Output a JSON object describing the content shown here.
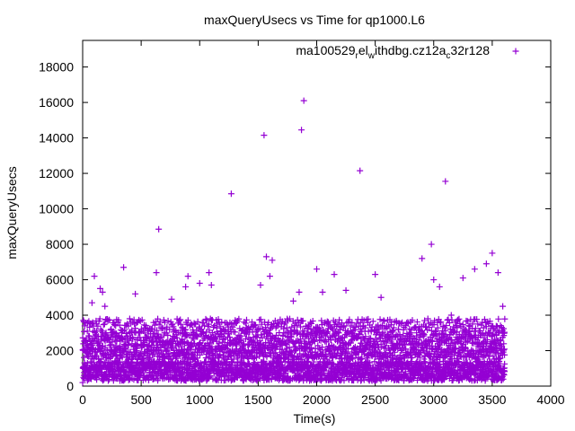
{
  "chart_data": {
    "type": "scatter",
    "title": "maxQueryUsecs vs Time for qp1000.L6",
    "xlabel": "Time(s)",
    "ylabel": "maxQueryUsecs",
    "xlim": [
      0,
      4000
    ],
    "ylim": [
      0,
      19500
    ],
    "x_ticks": [
      0,
      500,
      1000,
      1500,
      2000,
      2500,
      3000,
      3500,
      4000
    ],
    "y_ticks": [
      0,
      2000,
      4000,
      6000,
      8000,
      10000,
      12000,
      14000,
      16000,
      18000
    ],
    "grid": false,
    "legend_position": "top-right",
    "marker": "plus",
    "series": [
      {
        "name": "ma100529_rel_withdbg.cz12a_c32r128",
        "name_parts": [
          "ma100529",
          "r",
          "el",
          "w",
          "ithdbg.cz12a",
          "c",
          "32r128"
        ],
        "color": "#9400d3",
        "points": [
          [
            0,
            200
          ],
          [
            20,
            600
          ],
          [
            40,
            2300
          ],
          [
            60,
            900
          ],
          [
            80,
            4700
          ],
          [
            100,
            6200
          ],
          [
            120,
            3100
          ],
          [
            150,
            5500
          ],
          [
            170,
            5300
          ],
          [
            190,
            4500
          ],
          [
            230,
            2300
          ],
          [
            260,
            2800
          ],
          [
            320,
            1900
          ],
          [
            350,
            6700
          ],
          [
            380,
            2600
          ],
          [
            420,
            3000
          ],
          [
            450,
            5200
          ],
          [
            500,
            3100
          ],
          [
            550,
            2700
          ],
          [
            600,
            2500
          ],
          [
            630,
            6400
          ],
          [
            650,
            8850
          ],
          [
            700,
            3000
          ],
          [
            760,
            4900
          ],
          [
            800,
            2900
          ],
          [
            850,
            3300
          ],
          [
            880,
            5600
          ],
          [
            900,
            6200
          ],
          [
            950,
            3000
          ],
          [
            1000,
            5800
          ],
          [
            1050,
            2800
          ],
          [
            1080,
            6400
          ],
          [
            1100,
            5700
          ],
          [
            1150,
            3500
          ],
          [
            1200,
            2200
          ],
          [
            1270,
            10850
          ],
          [
            1300,
            2600
          ],
          [
            1400,
            3300
          ],
          [
            1480,
            2300
          ],
          [
            1520,
            5700
          ],
          [
            1550,
            14150
          ],
          [
            1570,
            7300
          ],
          [
            1600,
            6200
          ],
          [
            1620,
            7100
          ],
          [
            1650,
            2700
          ],
          [
            1700,
            3500
          ],
          [
            1750,
            2800
          ],
          [
            1800,
            4800
          ],
          [
            1850,
            5300
          ],
          [
            1870,
            14450
          ],
          [
            1890,
            16100
          ],
          [
            1950,
            3200
          ],
          [
            2000,
            6600
          ],
          [
            2050,
            5300
          ],
          [
            2100,
            3600
          ],
          [
            2150,
            6300
          ],
          [
            2200,
            3200
          ],
          [
            2250,
            5400
          ],
          [
            2300,
            2600
          ],
          [
            2370,
            12150
          ],
          [
            2400,
            3400
          ],
          [
            2450,
            2700
          ],
          [
            2500,
            6300
          ],
          [
            2550,
            5000
          ],
          [
            2600,
            3300
          ],
          [
            2650,
            2300
          ],
          [
            2700,
            3200
          ],
          [
            2750,
            2500
          ],
          [
            2800,
            3000
          ],
          [
            2900,
            7200
          ],
          [
            2950,
            3800
          ],
          [
            2980,
            8000
          ],
          [
            3000,
            6000
          ],
          [
            3050,
            5600
          ],
          [
            3100,
            11550
          ],
          [
            3150,
            4000
          ],
          [
            3200,
            3300
          ],
          [
            3250,
            6100
          ],
          [
            3300,
            3100
          ],
          [
            3350,
            6600
          ],
          [
            3400,
            3000
          ],
          [
            3450,
            6900
          ],
          [
            3500,
            7500
          ],
          [
            3550,
            6400
          ],
          [
            3590,
            4500
          ]
        ]
      }
    ]
  }
}
